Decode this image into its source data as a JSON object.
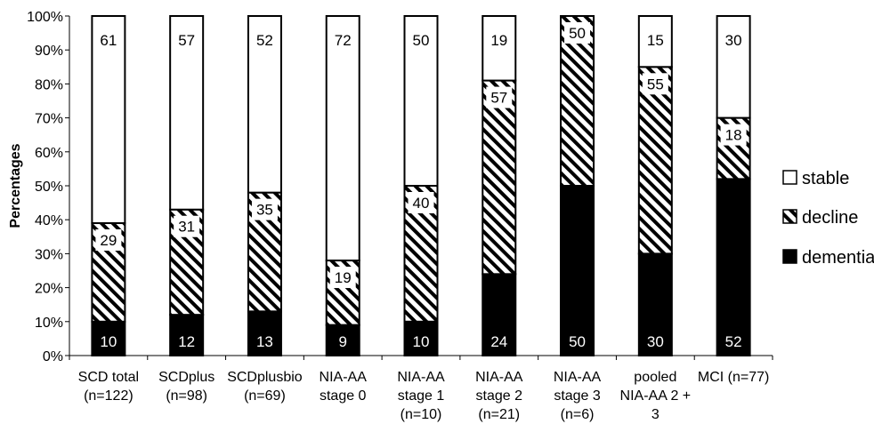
{
  "chart_data": {
    "type": "bar",
    "stacked": true,
    "percent": true,
    "ylabel": "Percentages",
    "xlabel": "",
    "ylim": [
      0,
      100
    ],
    "yticks": [
      "0%",
      "10%",
      "20%",
      "30%",
      "40%",
      "50%",
      "60%",
      "70%",
      "80%",
      "90%",
      "100%"
    ],
    "categories": [
      [
        "SCD total",
        "(n=122)"
      ],
      [
        "SCDplus",
        "(n=98)"
      ],
      [
        "SCDplusbio",
        "(n=69)"
      ],
      [
        "NIA-AA",
        "stage 0"
      ],
      [
        "NIA-AA",
        "stage 1",
        "(n=10)"
      ],
      [
        "NIA-AA",
        "stage 2",
        "(n=21)"
      ],
      [
        "NIA-AA",
        "stage 3",
        "(n=6)"
      ],
      [
        "pooled",
        "NIA-AA 2 +",
        "3"
      ],
      [
        "MCI (n=77)"
      ]
    ],
    "series": [
      {
        "name": "dementia",
        "fill": "black",
        "values": [
          10,
          12,
          13,
          9,
          10,
          24,
          50,
          30,
          52
        ],
        "labels": [
          "10",
          "12",
          "13",
          "9",
          "10",
          "24",
          "50",
          "30",
          "52"
        ]
      },
      {
        "name": "decline",
        "fill": "hatch",
        "values": [
          29,
          31,
          35,
          19,
          40,
          57,
          50,
          55,
          18
        ],
        "labels": [
          "29",
          "31",
          "35",
          "19",
          "40",
          "57",
          "50",
          "55",
          "18"
        ]
      },
      {
        "name": "stable",
        "fill": "white",
        "values": [
          61,
          57,
          52,
          72,
          50,
          19,
          0,
          15,
          30
        ],
        "labels": [
          "61",
          "57",
          "52",
          "72",
          "50",
          "19",
          "",
          "15",
          "30"
        ]
      }
    ],
    "legend": {
      "position": "right",
      "entries": [
        "stable",
        "decline",
        "dementia"
      ]
    },
    "grid": false,
    "colors": {
      "dementia": "#000000",
      "decline_hatch": "#000000",
      "stable": "#ffffff",
      "axis": "#000000"
    }
  }
}
